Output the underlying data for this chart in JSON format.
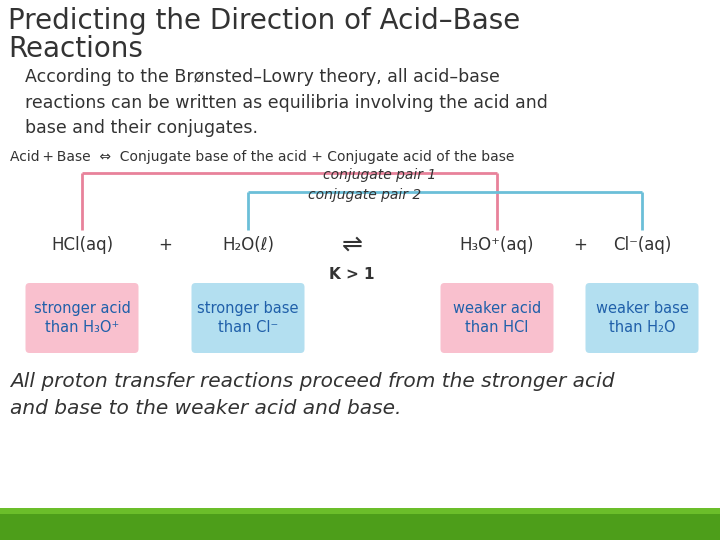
{
  "title_line1": "Predicting the Direction of Acid–Base",
  "title_line2": "Reactions",
  "body_text": "According to the Brønsted–Lowry theory, all acid–base\nreactions can be written as equilibria involving the acid and\nbase and their conjugates.",
  "equation_line": "Acid + Base  ⇔  Conjugate base of the acid + Conjugate acid of the base",
  "conj_pair1_label": "conjugate pair 1",
  "conj_pair2_label": "conjugate pair 2",
  "hcl": "HCl(aq)",
  "plus1": "+",
  "h2o": "H₂O(ℓ)",
  "arrow": "⇌",
  "h3o": "H₃O⁺(aq)",
  "plus2": "+",
  "cl": "Cl⁻(aq)",
  "k_label": "K > 1",
  "box1_text": "stronger acid\nthan H₃O⁺",
  "box2_text": "stronger base\nthan Cl⁻",
  "box3_text": "weaker acid\nthan HCl",
  "box4_text": "weaker base\nthan H₂O",
  "box1_color": "#f9c0ce",
  "box2_color": "#b3dff0",
  "box3_color": "#f9c0ce",
  "box4_color": "#b3dff0",
  "conj1_color": "#e8829a",
  "conj2_color": "#6bbfd8",
  "footer_text": "All proton transfer reactions proceed from the stronger acid\nand base to the weaker acid and base.",
  "footer_bar_color1": "#4d9e1a",
  "footer_bar_color2": "#6bbe2a",
  "bg_color": "#ffffff",
  "text_color": "#333333",
  "box_text_color": "#2060aa"
}
